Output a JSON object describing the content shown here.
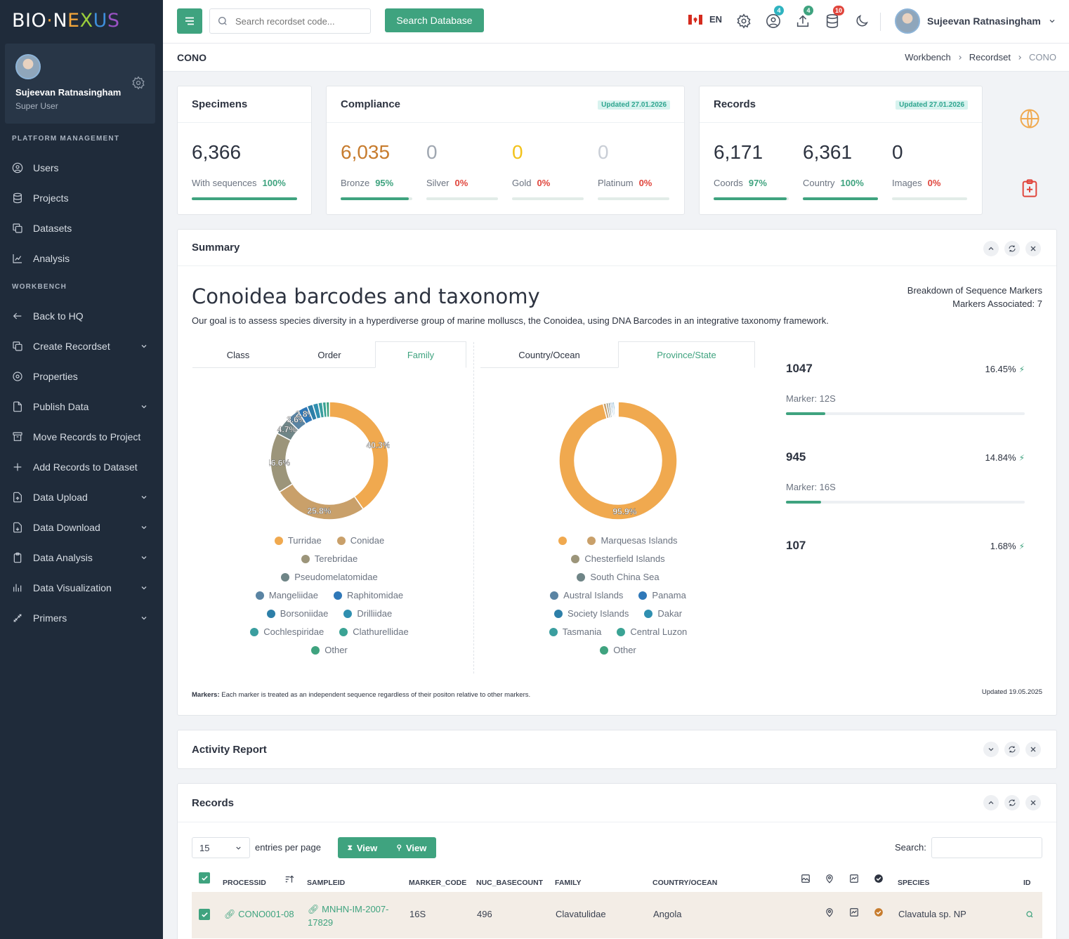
{
  "brand": {
    "part1": "BIO",
    "dot": "·",
    "n": "N",
    "e": "E",
    "x": "X",
    "u": "U",
    "s": "S"
  },
  "sidebar": {
    "user": {
      "name": "Sujeevan Ratnasingham",
      "role": "Super User"
    },
    "sections": {
      "platform": "PLATFORM MANAGEMENT",
      "workbench": "WORKBENCH"
    },
    "platform_items": [
      {
        "label": "Users"
      },
      {
        "label": "Projects"
      },
      {
        "label": "Datasets"
      },
      {
        "label": "Analysis"
      }
    ],
    "workbench_items": [
      {
        "label": "Back to HQ"
      },
      {
        "label": "Create Recordset"
      },
      {
        "label": "Properties"
      },
      {
        "label": "Publish Data"
      },
      {
        "label": "Move Records to Project"
      },
      {
        "label": "Add Records to Dataset"
      },
      {
        "label": "Data Upload"
      },
      {
        "label": "Data Download"
      },
      {
        "label": "Data Analysis"
      },
      {
        "label": "Data Visualization"
      },
      {
        "label": "Primers"
      }
    ]
  },
  "topbar": {
    "search_placeholder": "Search recordset code...",
    "search_button": "Search Database",
    "lang": "EN",
    "badges": {
      "profile": "4",
      "upload": "4",
      "db": "10"
    },
    "colors": {
      "badge_profile": "#2fb3c0",
      "badge_upload": "#3fa37f",
      "badge_db": "#e0453c"
    },
    "user": "Sujeevan Ratnasingham"
  },
  "page": {
    "title": "CONO",
    "breadcrumb": [
      "Workbench",
      "Recordset",
      "CONO"
    ]
  },
  "specimens": {
    "title": "Specimens",
    "value": "6,366",
    "label": "With sequences",
    "pct": "100%",
    "fill": 1.0
  },
  "compliance": {
    "title": "Compliance",
    "updated": "Updated 27.01.2026",
    "items": [
      {
        "value": "6,035",
        "label": "Bronze",
        "pct": "95%",
        "fill": 0.95,
        "color": "#c77c2e",
        "pctColor": "#3fa37f"
      },
      {
        "value": "0",
        "label": "Silver",
        "pct": "0%",
        "fill": 0,
        "color": "#a0a7b1",
        "pctColor": "#e0453c"
      },
      {
        "value": "0",
        "label": "Gold",
        "pct": "0%",
        "fill": 0,
        "color": "#f2c21b",
        "pctColor": "#e0453c"
      },
      {
        "value": "0",
        "label": "Platinum",
        "pct": "0%",
        "fill": 0,
        "color": "#c9ced6",
        "pctColor": "#e0453c"
      }
    ]
  },
  "records_card": {
    "title": "Records",
    "updated": "Updated 27.01.2026",
    "items": [
      {
        "value": "6,171",
        "label": "Coords",
        "pct": "97%",
        "fill": 0.97,
        "pctColor": "#3fa37f"
      },
      {
        "value": "6,361",
        "label": "Country",
        "pct": "100%",
        "fill": 1.0,
        "pctColor": "#3fa37f"
      },
      {
        "value": "0",
        "label": "Images",
        "pct": "0%",
        "fill": 0,
        "pctColor": "#e0453c"
      }
    ]
  },
  "summary": {
    "title": "Summary",
    "heading": "Conoidea barcodes and taxonomy",
    "description": "Our goal is to assess species diversity in a hyperdiverse group of marine molluscs, the Conoidea, using DNA Barcodes in an integrative taxonomy framework.",
    "breakdown_title": "Breakdown of Sequence Markers",
    "markers_associated": "Markers Associated: 7",
    "tabs_left": [
      "Class",
      "Order",
      "Family"
    ],
    "tabs_right": [
      "Country/Ocean",
      "Province/State"
    ],
    "markers": [
      {
        "count": "1047",
        "pct": "16.45%",
        "label": "Marker: 12S",
        "fill": 0.1645
      },
      {
        "count": "945",
        "pct": "14.84%",
        "label": "Marker: 16S",
        "fill": 0.1484
      },
      {
        "count": "107",
        "pct": "1.68%"
      }
    ],
    "footnote_bold": "Markers:",
    "footnote": " Each marker is treated as an independent sequence regardless of their positon relative to other markers.",
    "updated": "Updated 19.05.2025"
  },
  "chart_data": [
    {
      "type": "pie",
      "title": "",
      "categories": [
        "Turridae",
        "Conidae",
        "Terebridae",
        "Pseudomelatomidae",
        "Mangeliidae",
        "Raphitomidae",
        "Borsoniidae",
        "Drilliidae",
        "Cochlespiridae",
        "Clathurellidae",
        "Other"
      ],
      "values": [
        40.3,
        25.8,
        16.6,
        4.7,
        3.6,
        2.8,
        1.6,
        1.5,
        1.2,
        1.0,
        0.9
      ],
      "labels": [
        "40.3%",
        "25.8%",
        "16.6%",
        "4.7%",
        "3.6%",
        "2.8%",
        "",
        "",
        "",
        "",
        ""
      ],
      "colors": [
        "#f0a94f",
        "#c9a06a",
        "#9c957a",
        "#6f8587",
        "#5a84a3",
        "#2f78b8",
        "#2d7fa8",
        "#2f8fb0",
        "#3a9e9f",
        "#3aa394",
        "#3fa37f"
      ]
    },
    {
      "type": "pie",
      "title": "",
      "categories": [
        "",
        "Marquesas Islands",
        "Chesterfield Islands",
        "South China Sea",
        "Austral Islands",
        "Panama",
        "Society Islands",
        "Dakar",
        "Tasmania",
        "Central Luzon",
        "Other"
      ],
      "values": [
        95.9,
        0.8,
        0.6,
        0.5,
        0.4,
        0.4,
        0.4,
        0.3,
        0.3,
        0.2,
        0.2
      ],
      "labels": [
        "95.9%",
        "",
        "",
        "",
        "",
        "",
        "",
        "",
        "",
        "",
        ""
      ],
      "colors": [
        "#f0a94f",
        "#c9a06a",
        "#9c957a",
        "#6f8587",
        "#5a84a3",
        "#2f78b8",
        "#2d7fa8",
        "#2f8fb0",
        "#3a9e9f",
        "#3aa394",
        "#3fa37f"
      ]
    }
  ],
  "activity": {
    "title": "Activity Report"
  },
  "records": {
    "title": "Records",
    "entries": "15",
    "entries_label": "entries per page",
    "view1": "View",
    "view2": "View",
    "search_label": "Search:",
    "columns": [
      "PROCESSID",
      "SAMPLEID",
      "MARKER_CODE",
      "NUC_BASECOUNT",
      "FAMILY",
      "COUNTRY/OCEAN",
      "SPECIES",
      "ID"
    ],
    "rows": [
      {
        "processid": "CONO001-08",
        "sampleid": "MNHN-IM-2007-17829",
        "marker": "16S",
        "basecount": "496",
        "family": "Clavatulidae",
        "country": "Angola",
        "species": "Clavatula sp. NP"
      }
    ]
  }
}
